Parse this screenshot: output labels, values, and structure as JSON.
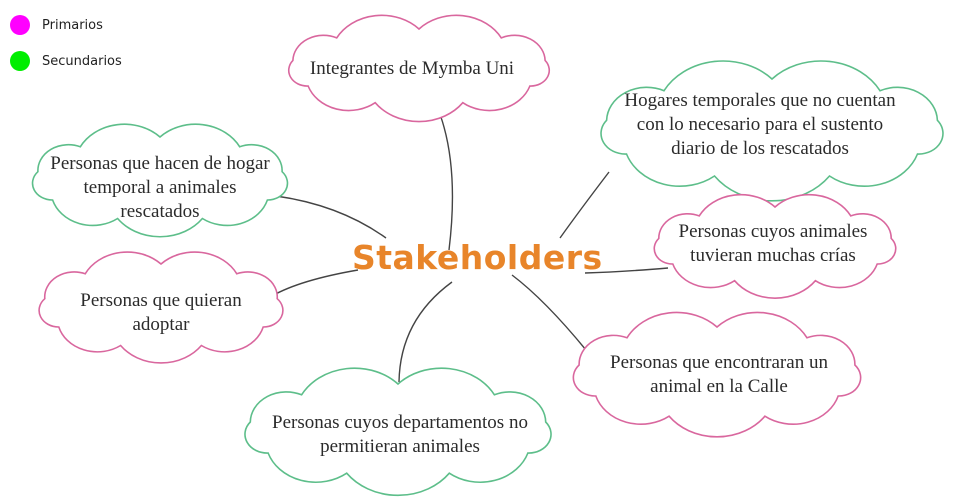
{
  "legend": {
    "primary": {
      "label": "Primarios",
      "color": "#FF00FF"
    },
    "secondary": {
      "label": "Secundarios",
      "color": "#00EE00"
    }
  },
  "center": {
    "label": "Stakeholders",
    "color": "#E8852A"
  },
  "nodes": [
    {
      "id": "mymba",
      "text": "Integrantes de Mymba Uni",
      "group": "primary"
    },
    {
      "id": "hogares",
      "text": "Hogares temporales que no cuentan con lo necesario para el sustento diario de los rescatados",
      "group": "secondary"
    },
    {
      "id": "hogar-temporal",
      "text": "Personas que hacen de hogar temporal a animales rescatados",
      "group": "secondary"
    },
    {
      "id": "crias",
      "text": "Personas cuyos animales tuvieran muchas crías",
      "group": "primary"
    },
    {
      "id": "adoptar",
      "text": "Personas que quieran adoptar",
      "group": "primary"
    },
    {
      "id": "calle",
      "text": "Personas que encontraran un animal en la Calle",
      "group": "primary"
    },
    {
      "id": "departamentos",
      "text": "Personas cuyos departamentos no permitieran animales",
      "group": "secondary"
    }
  ],
  "colors": {
    "primary_stroke": "#D9679E",
    "secondary_stroke": "#5DBE8A",
    "connector": "#444444"
  }
}
